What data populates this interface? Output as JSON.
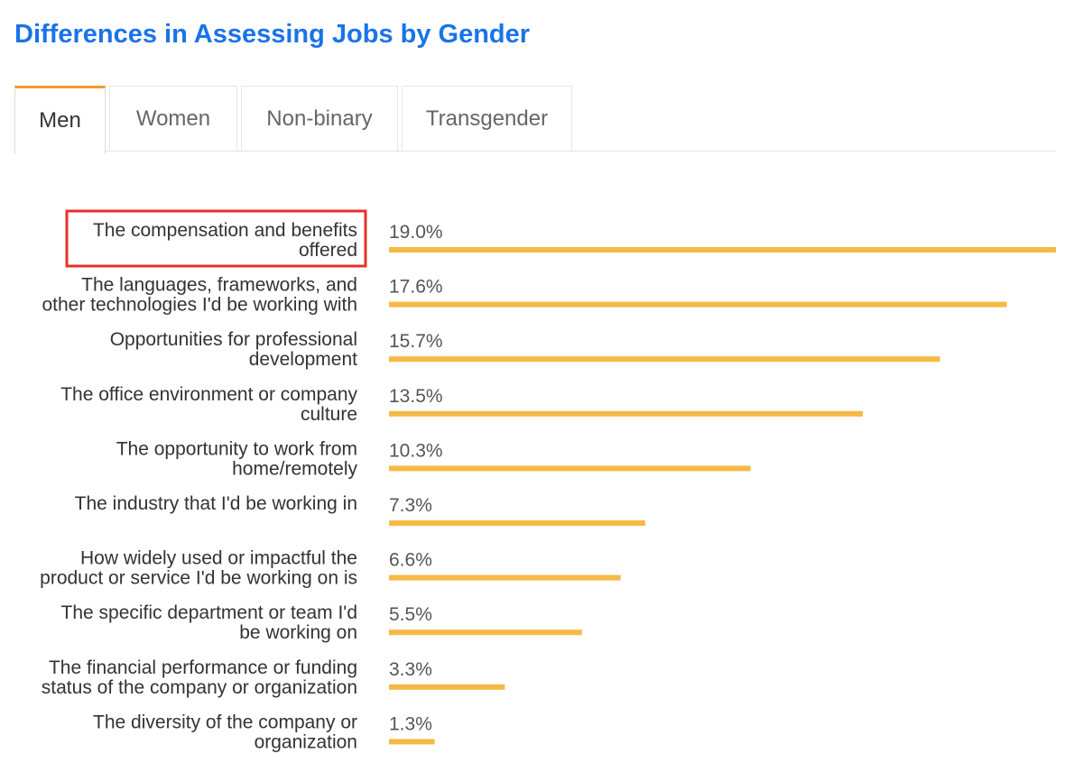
{
  "header": {
    "title": "Differences in Assessing Jobs by Gender"
  },
  "tabs": [
    {
      "label": "Men",
      "active": true
    },
    {
      "label": "Women",
      "active": false
    },
    {
      "label": "Non-binary",
      "active": false
    },
    {
      "label": "Transgender",
      "active": false
    }
  ],
  "colors": {
    "title": "#1a73e8",
    "bar": "#f5b945",
    "tab_accent": "#f39c2b",
    "highlight_box": "#e8302a",
    "label_text": "#333333",
    "value_text": "#555555"
  },
  "chart_data": {
    "type": "bar",
    "orientation": "horizontal",
    "categories": [
      [
        "The compensation and benefits",
        "offered"
      ],
      [
        "The languages, frameworks, and",
        "other technologies I'd be working with"
      ],
      [
        "Opportunities for professional",
        "development"
      ],
      [
        "The office environment or company",
        "culture"
      ],
      [
        "The opportunity to work from",
        "home/remotely"
      ],
      [
        "The industry that I'd be working in"
      ],
      [
        "How widely used or impactful the",
        "product or service I'd be working on is"
      ],
      [
        "The specific department or team I'd",
        "be working on"
      ],
      [
        "The financial performance or funding",
        "status of the company or organization"
      ],
      [
        "The diversity of the company or",
        "organization"
      ]
    ],
    "values": [
      19.0,
      17.6,
      15.7,
      13.5,
      10.3,
      7.3,
      6.6,
      5.5,
      3.3,
      1.3
    ],
    "value_labels": [
      "19.0%",
      "17.6%",
      "15.7%",
      "13.5%",
      "10.3%",
      "7.3%",
      "6.6%",
      "5.5%",
      "3.3%",
      "1.3%"
    ],
    "xlim": [
      0,
      19.0
    ],
    "highlighted_index": 0,
    "grid": false,
    "legend": "none"
  }
}
